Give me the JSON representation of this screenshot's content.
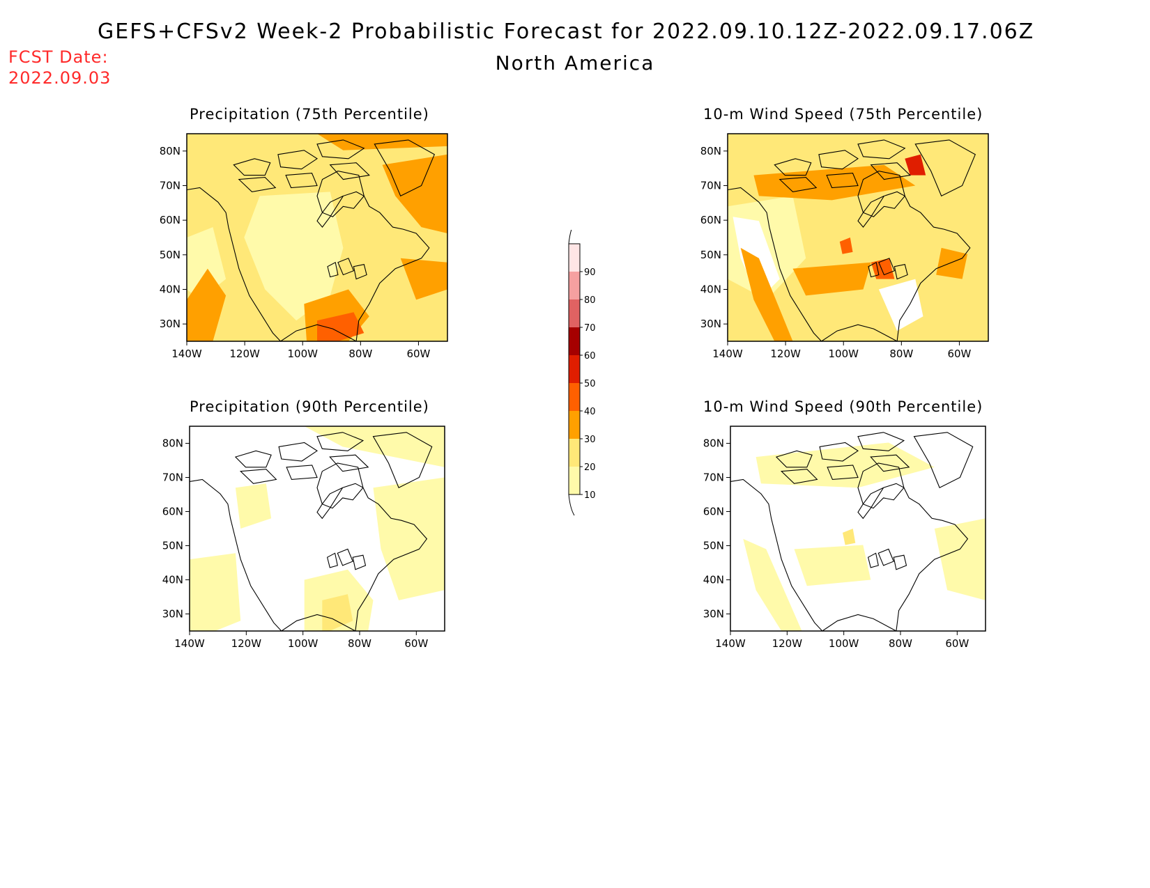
{
  "header": {
    "title": "GEFS+CFSv2 Week-2 Probabilistic Forecast for 2022.09.10.12Z-2022.09.17.06Z",
    "region": "North America",
    "fcst_label": "FCST Date:",
    "fcst_date": "2022.09.03"
  },
  "chart_data": [
    {
      "type": "heatmap",
      "title": "Precipitation (75th Percentile)",
      "x_ticks": [
        "140W",
        "120W",
        "100W",
        "80W",
        "60W"
      ],
      "y_ticks": [
        "80N",
        "70N",
        "60N",
        "50N",
        "40N",
        "30N"
      ],
      "xlim": [
        -140,
        -50
      ],
      "ylim": [
        25,
        85
      ]
    },
    {
      "type": "heatmap",
      "title": "10-m Wind Speed (75th Percentile)",
      "x_ticks": [
        "140W",
        "120W",
        "100W",
        "80W",
        "60W"
      ],
      "y_ticks": [
        "80N",
        "70N",
        "60N",
        "50N",
        "40N",
        "30N"
      ],
      "xlim": [
        -140,
        -50
      ],
      "ylim": [
        25,
        85
      ]
    },
    {
      "type": "heatmap",
      "title": "Precipitation (90th Percentile)",
      "x_ticks": [
        "140W",
        "120W",
        "100W",
        "80W",
        "60W"
      ],
      "y_ticks": [
        "80N",
        "70N",
        "60N",
        "50N",
        "40N",
        "30N"
      ],
      "xlim": [
        -140,
        -50
      ],
      "ylim": [
        25,
        85
      ]
    },
    {
      "type": "heatmap",
      "title": "10-m Wind Speed (90th Percentile)",
      "x_ticks": [
        "140W",
        "120W",
        "100W",
        "80W",
        "60W"
      ],
      "y_ticks": [
        "80N",
        "70N",
        "60N",
        "50N",
        "40N",
        "30N"
      ],
      "xlim": [
        -140,
        -50
      ],
      "ylim": [
        25,
        85
      ]
    }
  ],
  "colorbar": {
    "levels": [
      "10",
      "20",
      "30",
      "40",
      "50",
      "60",
      "70",
      "80",
      "90"
    ],
    "colors": [
      "#fffaaa",
      "#ffe878",
      "#ffa000",
      "#ff6000",
      "#e01e00",
      "#a50000",
      "#e06262",
      "#f5a0a0",
      "#ffe5e5"
    ]
  }
}
